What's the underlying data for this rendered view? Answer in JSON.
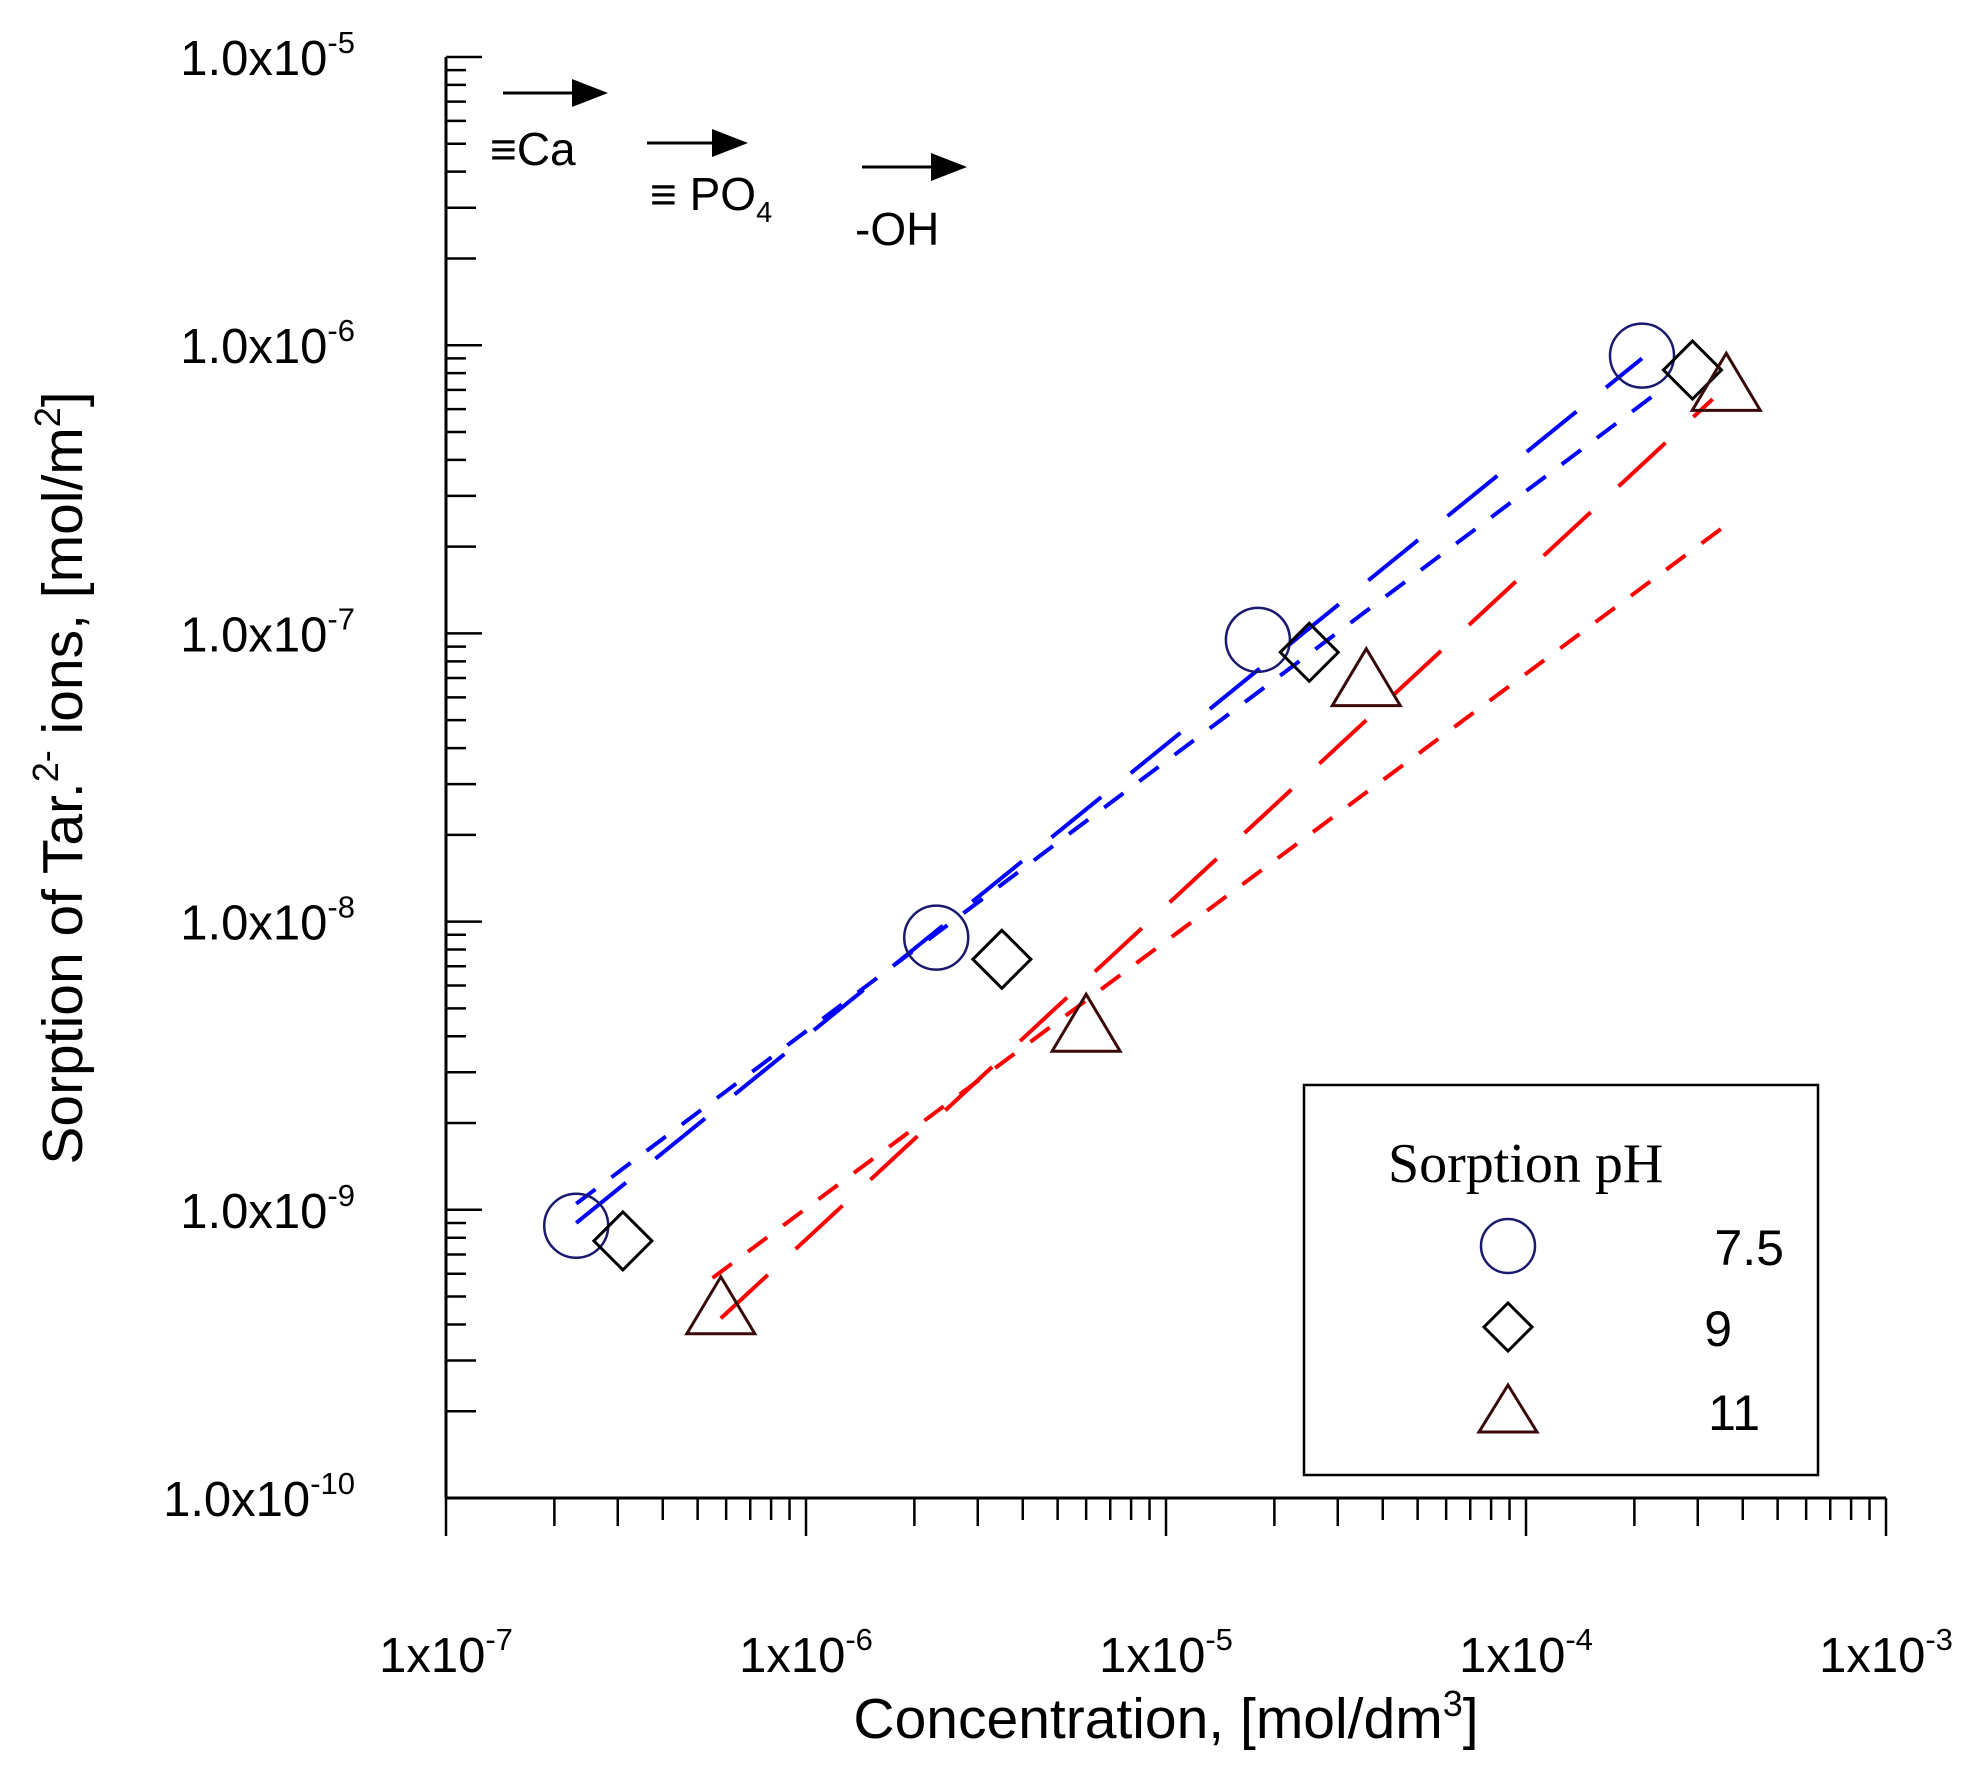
{
  "chart_data": {
    "type": "scatter",
    "xscale": "log",
    "yscale": "log",
    "xlim": [
      1e-07,
      0.001
    ],
    "ylim": [
      1e-10,
      1e-05
    ],
    "xlabel": {
      "main": "Concentration, [mol/dm",
      "sup": "3",
      "end": "]"
    },
    "ylabel": {
      "main": "Sorption of Tar.",
      "sup": "2-",
      "end": " ions, [mol/m",
      "sup2": "2",
      "end2": "]"
    },
    "x_ticks": [
      {
        "value": 1e-07,
        "base": "1x10",
        "exp": "-7"
      },
      {
        "value": 1e-06,
        "base": "1x10",
        "exp": "-6"
      },
      {
        "value": 1e-05,
        "base": "1x10",
        "exp": "-5"
      },
      {
        "value": 0.0001,
        "base": "1x10",
        "exp": "-4"
      },
      {
        "value": 0.001,
        "base": "1x10",
        "exp": "-3"
      }
    ],
    "y_ticks": [
      {
        "value": 1e-05,
        "base": "1.0x10",
        "exp": "-5"
      },
      {
        "value": 1e-06,
        "base": "1.0x10",
        "exp": "-6"
      },
      {
        "value": 1e-07,
        "base": "1.0x10",
        "exp": "-7"
      },
      {
        "value": 1e-08,
        "base": "1.0x10",
        "exp": "-8"
      },
      {
        "value": 1e-09,
        "base": "1.0x10",
        "exp": "-9"
      },
      {
        "value": 1e-10,
        "base": "1.0x10",
        "exp": "-10"
      }
    ],
    "legend": {
      "title": "Sorption pH",
      "position": "bottom-right"
    },
    "series": [
      {
        "name": "7.5",
        "marker": "circle",
        "color": "#1a1a6e",
        "x": [
          2.3e-07,
          2.3e-06,
          1.8e-05,
          0.00021
        ],
        "y": [
          8.8e-10,
          8.8e-09,
          9.5e-08,
          9.2e-07
        ]
      },
      {
        "name": "9",
        "marker": "diamond",
        "color": "#000000",
        "x": [
          3.1e-07,
          3.5e-06,
          2.5e-05,
          0.00029
        ],
        "y": [
          7.8e-10,
          7.4e-09,
          8.6e-08,
          8.2e-07
        ]
      },
      {
        "name": "11",
        "marker": "triangle",
        "color": "#3a0a0a",
        "x": [
          5.8e-07,
          6e-06,
          3.6e-05,
          0.00036
        ],
        "y": [
          4.5e-10,
          4.3e-09,
          6.8e-08,
          7.2e-07
        ]
      }
    ],
    "fit_lines": [
      {
        "color": "#0000ff",
        "dash": "long",
        "x": [
          2.3e-07,
          0.00021
        ],
        "y": [
          9e-10,
          9e-07
        ]
      },
      {
        "color": "#0000ff",
        "dash": "short",
        "x": [
          2.3e-07,
          0.00023
        ],
        "y": [
          1.05e-09,
          6.8e-07
        ]
      },
      {
        "color": "#ff0000",
        "dash": "long",
        "x": [
          5.8e-07,
          0.00033
        ],
        "y": [
          4.2e-10,
          6.5e-07
        ]
      },
      {
        "color": "#ff0000",
        "dash": "short",
        "x": [
          5.5e-07,
          0.00038
        ],
        "y": [
          5.8e-10,
          2.5e-07
        ]
      }
    ],
    "annotations": [
      {
        "text": "≡Ca",
        "sub": ""
      },
      {
        "text": "≡ PO",
        "sub": "4"
      },
      {
        "text": "-OH",
        "sub": ""
      }
    ]
  }
}
